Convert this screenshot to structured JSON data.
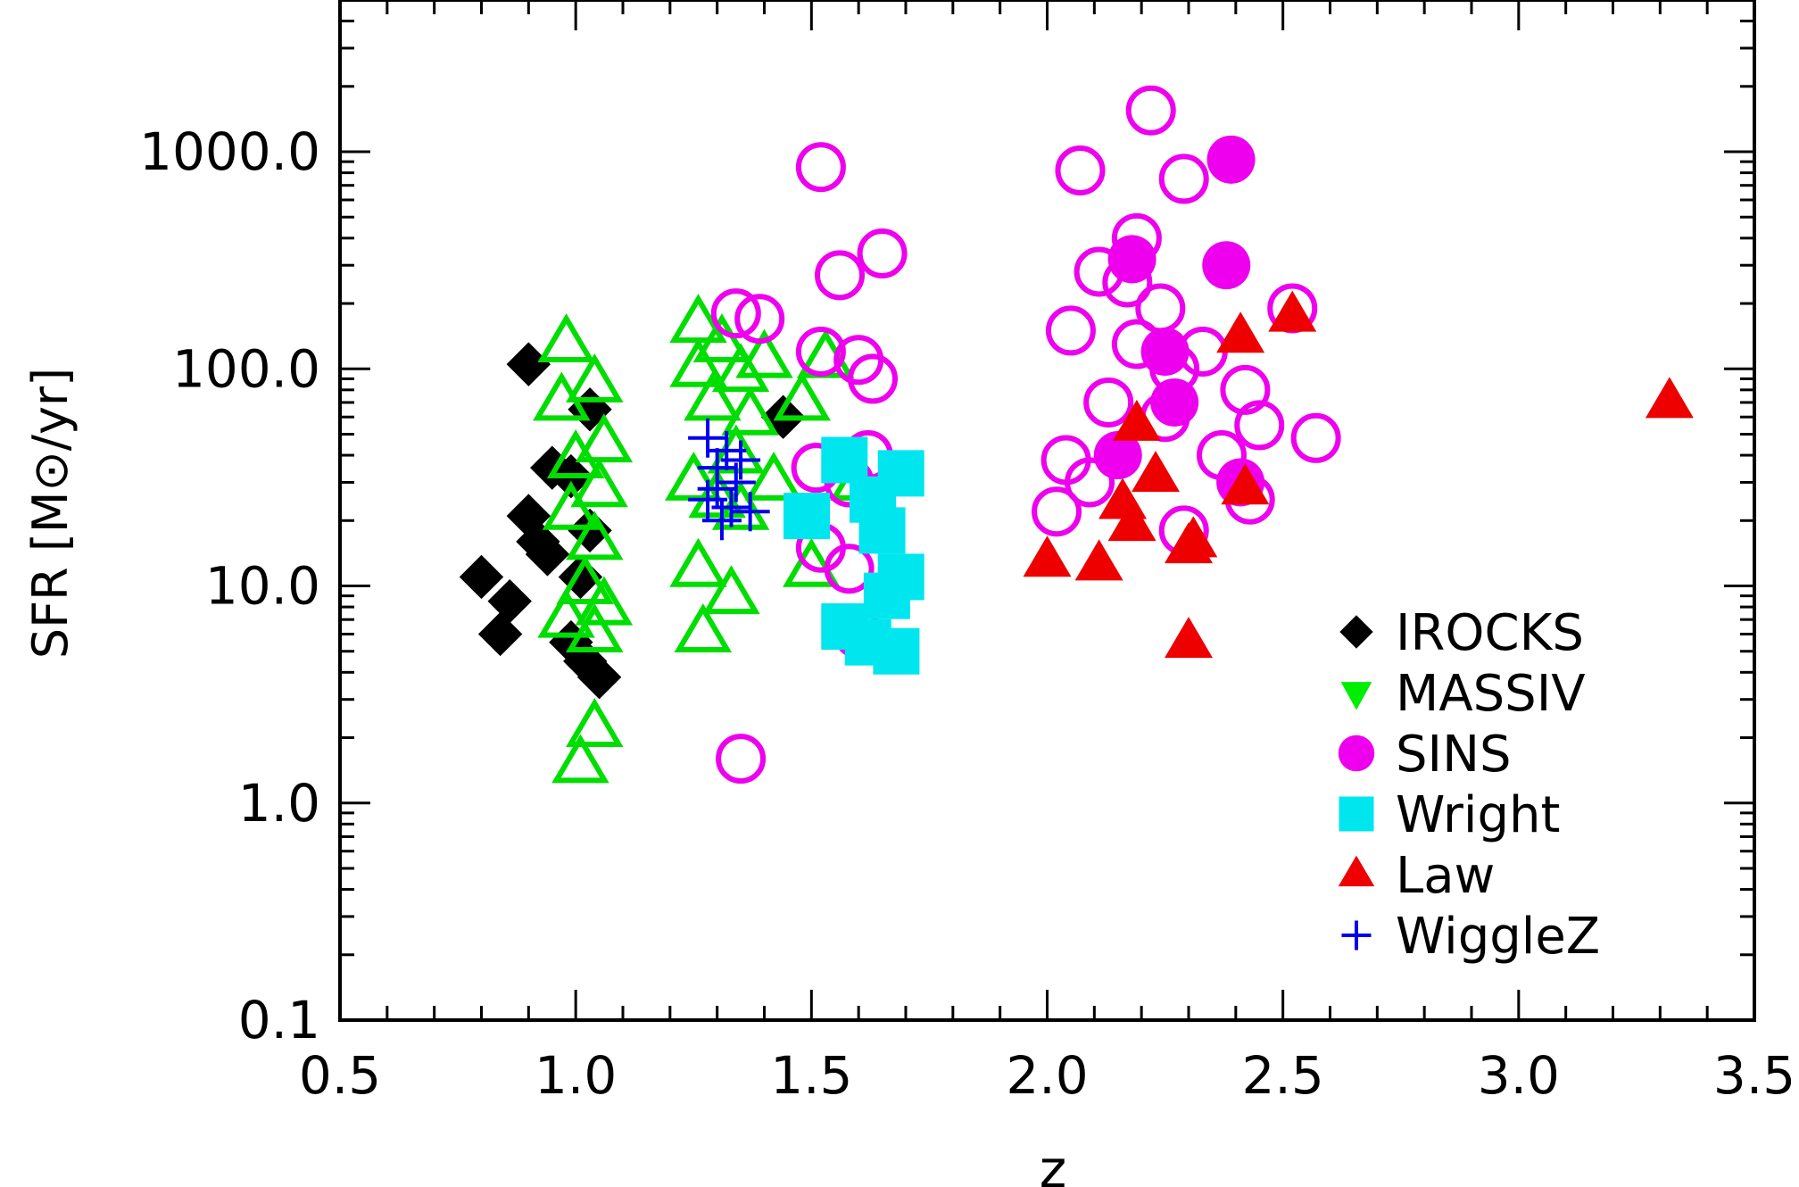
{
  "chart_data": {
    "type": "scatter",
    "xlabel": "z",
    "ylabel": "SFR [M⊙/yr]",
    "xlim": [
      0.5,
      3.5
    ],
    "ylim": [
      0.1,
      5000
    ],
    "yscale": "log",
    "x_ticks": [
      "0.5",
      "1.0",
      "1.5",
      "2.0",
      "2.5",
      "3.0",
      "3.5"
    ],
    "y_ticks": [
      "0.1",
      "1.0",
      "10.0",
      "100.0",
      "1000.0"
    ],
    "legend_position": "lower-right",
    "series": [
      {
        "name": "IROCKS",
        "marker": "diamond",
        "filled": true,
        "color": "#000000",
        "points": [
          {
            "x": 0.9,
            "y": 105
          },
          {
            "x": 1.03,
            "y": 65
          },
          {
            "x": 0.95,
            "y": 35
          },
          {
            "x": 0.99,
            "y": 32
          },
          {
            "x": 0.9,
            "y": 21
          },
          {
            "x": 0.92,
            "y": 16
          },
          {
            "x": 0.94,
            "y": 14
          },
          {
            "x": 1.03,
            "y": 18
          },
          {
            "x": 0.8,
            "y": 11
          },
          {
            "x": 0.86,
            "y": 8.5
          },
          {
            "x": 1.01,
            "y": 11
          },
          {
            "x": 0.84,
            "y": 6
          },
          {
            "x": 0.99,
            "y": 5.5
          },
          {
            "x": 1.02,
            "y": 4.5
          },
          {
            "x": 1.05,
            "y": 3.8
          },
          {
            "x": 1.44,
            "y": 60
          }
        ]
      },
      {
        "name": "MASSIV",
        "marker": "triangle",
        "filled": false,
        "color": "#00dd00",
        "points": [
          {
            "x": 0.98,
            "y": 130
          },
          {
            "x": 1.04,
            "y": 85
          },
          {
            "x": 0.97,
            "y": 70
          },
          {
            "x": 1.06,
            "y": 45
          },
          {
            "x": 1.0,
            "y": 38
          },
          {
            "x": 1.05,
            "y": 28
          },
          {
            "x": 0.99,
            "y": 22
          },
          {
            "x": 1.04,
            "y": 16
          },
          {
            "x": 1.02,
            "y": 10
          },
          {
            "x": 1.06,
            "y": 8
          },
          {
            "x": 0.98,
            "y": 7
          },
          {
            "x": 1.04,
            "y": 6
          },
          {
            "x": 1.04,
            "y": 2.2
          },
          {
            "x": 1.01,
            "y": 1.5
          },
          {
            "x": 1.26,
            "y": 160
          },
          {
            "x": 1.31,
            "y": 130
          },
          {
            "x": 1.26,
            "y": 100
          },
          {
            "x": 1.35,
            "y": 95
          },
          {
            "x": 1.4,
            "y": 110
          },
          {
            "x": 1.29,
            "y": 70
          },
          {
            "x": 1.37,
            "y": 60
          },
          {
            "x": 1.25,
            "y": 30
          },
          {
            "x": 1.3,
            "y": 25
          },
          {
            "x": 1.34,
            "y": 40
          },
          {
            "x": 1.42,
            "y": 30
          },
          {
            "x": 1.26,
            "y": 12
          },
          {
            "x": 1.33,
            "y": 9
          },
          {
            "x": 1.27,
            "y": 6
          },
          {
            "x": 1.35,
            "y": 22
          },
          {
            "x": 1.53,
            "y": 110
          },
          {
            "x": 1.48,
            "y": 70
          },
          {
            "x": 1.5,
            "y": 12
          },
          {
            "x": 1.6,
            "y": 30
          }
        ]
      },
      {
        "name": "SINS",
        "marker": "circle",
        "filled": false,
        "color": "#ee00ee",
        "points": [
          {
            "x": 1.52,
            "y": 850
          },
          {
            "x": 1.65,
            "y": 340
          },
          {
            "x": 1.56,
            "y": 270
          },
          {
            "x": 1.34,
            "y": 180
          },
          {
            "x": 1.39,
            "y": 170
          },
          {
            "x": 1.52,
            "y": 120
          },
          {
            "x": 1.6,
            "y": 110
          },
          {
            "x": 1.63,
            "y": 90
          },
          {
            "x": 1.51,
            "y": 35
          },
          {
            "x": 1.58,
            "y": 30
          },
          {
            "x": 1.62,
            "y": 40
          },
          {
            "x": 1.52,
            "y": 15
          },
          {
            "x": 1.58,
            "y": 12
          },
          {
            "x": 1.6,
            "y": 6
          },
          {
            "x": 1.35,
            "y": 1.6
          },
          {
            "x": 2.22,
            "y": 1550
          },
          {
            "x": 2.07,
            "y": 820
          },
          {
            "x": 2.29,
            "y": 750
          },
          {
            "x": 2.19,
            "y": 400
          },
          {
            "x": 2.11,
            "y": 280
          },
          {
            "x": 2.17,
            "y": 250
          },
          {
            "x": 2.24,
            "y": 190
          },
          {
            "x": 2.19,
            "y": 130
          },
          {
            "x": 2.05,
            "y": 150
          },
          {
            "x": 2.33,
            "y": 120
          },
          {
            "x": 2.27,
            "y": 100
          },
          {
            "x": 2.42,
            "y": 80
          },
          {
            "x": 2.13,
            "y": 70
          },
          {
            "x": 2.25,
            "y": 60
          },
          {
            "x": 2.45,
            "y": 55
          },
          {
            "x": 2.57,
            "y": 48
          },
          {
            "x": 2.04,
            "y": 38
          },
          {
            "x": 2.09,
            "y": 30
          },
          {
            "x": 2.37,
            "y": 40
          },
          {
            "x": 2.43,
            "y": 25
          },
          {
            "x": 2.02,
            "y": 22
          },
          {
            "x": 2.29,
            "y": 18
          },
          {
            "x": 2.52,
            "y": 190
          }
        ]
      },
      {
        "name": "SINS (filled)",
        "marker": "circle",
        "filled": true,
        "color": "#ee00ee",
        "points": [
          {
            "x": 2.39,
            "y": 920
          },
          {
            "x": 2.38,
            "y": 300
          },
          {
            "x": 2.18,
            "y": 320
          },
          {
            "x": 2.25,
            "y": 120
          },
          {
            "x": 2.27,
            "y": 70
          },
          {
            "x": 2.41,
            "y": 30
          },
          {
            "x": 2.15,
            "y": 40
          }
        ]
      },
      {
        "name": "Wright",
        "marker": "square",
        "filled": true,
        "color": "#00e6ee",
        "points": [
          {
            "x": 1.49,
            "y": 21
          },
          {
            "x": 1.57,
            "y": 38
          },
          {
            "x": 1.63,
            "y": 25
          },
          {
            "x": 1.69,
            "y": 33
          },
          {
            "x": 1.65,
            "y": 18
          },
          {
            "x": 1.69,
            "y": 11
          },
          {
            "x": 1.66,
            "y": 9
          },
          {
            "x": 1.57,
            "y": 6.5
          },
          {
            "x": 1.62,
            "y": 5.5
          },
          {
            "x": 1.68,
            "y": 5
          }
        ]
      },
      {
        "name": "Law",
        "marker": "triangle",
        "filled": true,
        "color": "#ee0000",
        "points": [
          {
            "x": 2.52,
            "y": 175
          },
          {
            "x": 2.41,
            "y": 140
          },
          {
            "x": 2.19,
            "y": 55
          },
          {
            "x": 2.23,
            "y": 32
          },
          {
            "x": 2.16,
            "y": 24
          },
          {
            "x": 2.18,
            "y": 19
          },
          {
            "x": 2.42,
            "y": 28
          },
          {
            "x": 2.31,
            "y": 16
          },
          {
            "x": 2.3,
            "y": 15
          },
          {
            "x": 2.0,
            "y": 13
          },
          {
            "x": 2.11,
            "y": 12.5
          },
          {
            "x": 2.3,
            "y": 5.5
          },
          {
            "x": 3.32,
            "y": 70
          }
        ]
      },
      {
        "name": "WiggleZ",
        "marker": "plus",
        "filled": false,
        "color": "#0000ee",
        "points": [
          {
            "x": 1.28,
            "y": 48
          },
          {
            "x": 1.32,
            "y": 42
          },
          {
            "x": 1.3,
            "y": 35
          },
          {
            "x": 1.34,
            "y": 30
          },
          {
            "x": 1.28,
            "y": 25
          },
          {
            "x": 1.33,
            "y": 23
          },
          {
            "x": 1.37,
            "y": 22
          },
          {
            "x": 1.31,
            "y": 20
          },
          {
            "x": 1.3,
            "y": 28
          },
          {
            "x": 1.35,
            "y": 38
          }
        ]
      }
    ]
  },
  "legend": [
    {
      "label": "IROCKS",
      "marker": "diamond",
      "color": "#000000"
    },
    {
      "label": "MASSIV",
      "marker": "triangle-down",
      "color": "#00ee00"
    },
    {
      "label": "SINS",
      "marker": "circle",
      "color": "#ee00ee"
    },
    {
      "label": "Wright",
      "marker": "square",
      "color": "#00e6ee"
    },
    {
      "label": "Law",
      "marker": "triangle",
      "color": "#ee0000"
    },
    {
      "label": "WiggleZ",
      "marker": "plus",
      "color": "#0000ee"
    }
  ]
}
